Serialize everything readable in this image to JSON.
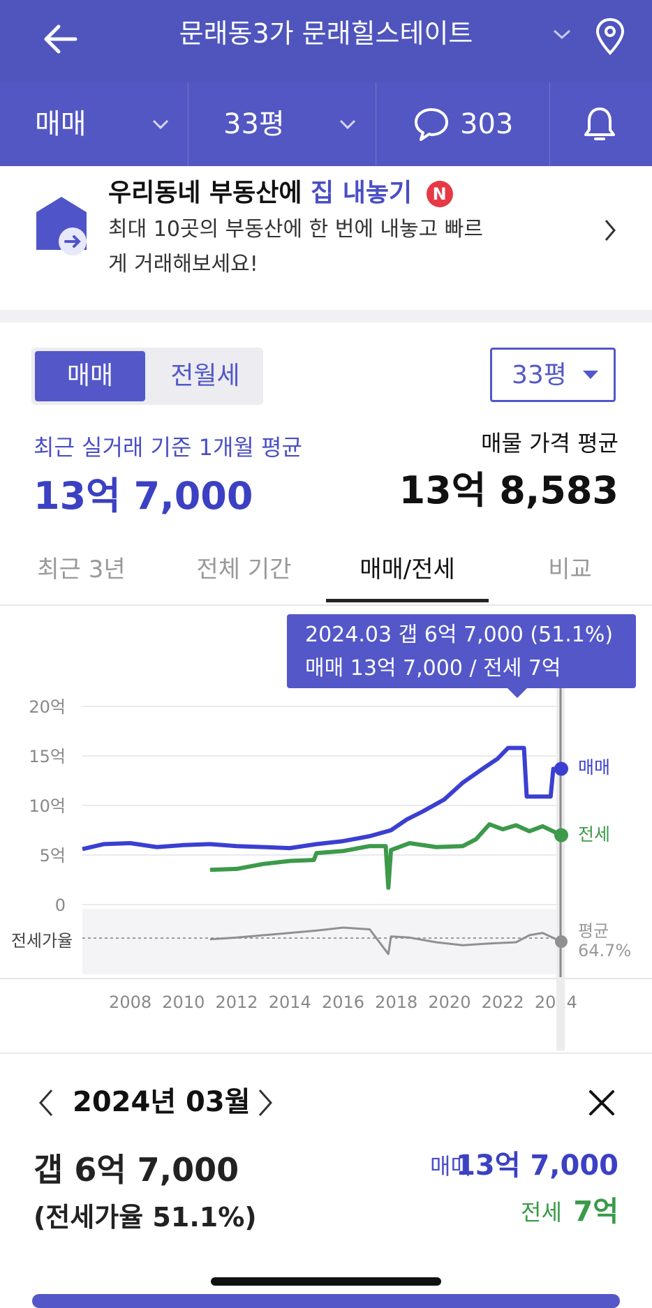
{
  "header": {
    "title": "문래동3가 문래힐스테이트",
    "icons": {
      "back": "back-arrow-icon",
      "dropdown": "chevron-down-icon",
      "location": "map-pin-icon"
    }
  },
  "filters": {
    "trade_type": "매매",
    "size": "33평",
    "comment_count": "303",
    "icons": {
      "comment": "speech-bubble-icon",
      "alert": "bell-icon"
    }
  },
  "banner": {
    "headline_prefix": "우리동네 부동산에",
    "headline_accent": "집 내놓기",
    "badge": "N",
    "description": "최대 10곳의 부동산에 한 번에 내놓고 빠르게 거래해보세요!"
  },
  "segment": {
    "active": "매매",
    "inactive": "전월세"
  },
  "size_select": {
    "value": "33평"
  },
  "summary": {
    "left_label": "최근 실거래 기준 1개월 평균",
    "left_value": "13억 7,000",
    "right_label": "매물 가격 평균",
    "right_value": "13억 8,583"
  },
  "tabs": [
    "최근 3년",
    "전체 기간",
    "매매/전세",
    "비교"
  ],
  "tooltip": {
    "line1": "2024.03  갭 6억 7,000 (51.1%)",
    "line2": "매매 13억 7,000 / 전세 7억"
  },
  "colors": {
    "primary": "#5357c8",
    "sale": "#3b3fd1",
    "jeonse": "#3c9a4a",
    "ratio": "#909090"
  },
  "chart_data": {
    "type": "line",
    "y_unit": "억",
    "ylim": [
      0,
      20
    ],
    "y_ticks": [
      "20억",
      "15억",
      "10억",
      "5억",
      "0"
    ],
    "x_ticks": [
      "2008",
      "2010",
      "2012",
      "2014",
      "2016",
      "2018",
      "2020",
      "2022",
      "2024"
    ],
    "ratio_label": "전세가율",
    "ratio_avg_label": "평균",
    "ratio_avg_value": "64.7%",
    "series": [
      {
        "name": "매매",
        "points": [
          [
            2006.2,
            5.6
          ],
          [
            2007,
            6.1
          ],
          [
            2008,
            6.2
          ],
          [
            2009,
            5.8
          ],
          [
            2010,
            6.0
          ],
          [
            2011,
            6.1
          ],
          [
            2012,
            5.9
          ],
          [
            2013,
            5.8
          ],
          [
            2014,
            5.7
          ],
          [
            2015,
            6.1
          ],
          [
            2016,
            6.4
          ],
          [
            2017,
            6.9
          ],
          [
            2017.8,
            7.5
          ],
          [
            2018.4,
            8.6
          ],
          [
            2019,
            9.4
          ],
          [
            2019.8,
            10.6
          ],
          [
            2020.5,
            12.3
          ],
          [
            2021.3,
            13.8
          ],
          [
            2021.8,
            14.7
          ],
          [
            2022.2,
            15.8
          ],
          [
            2022.8,
            15.8
          ],
          [
            2022.9,
            10.9
          ],
          [
            2023.8,
            10.9
          ],
          [
            2023.9,
            13.7
          ],
          [
            2024.2,
            13.7
          ]
        ]
      },
      {
        "name": "전세",
        "points": [
          [
            2011,
            3.5
          ],
          [
            2012,
            3.6
          ],
          [
            2013,
            4.1
          ],
          [
            2014,
            4.4
          ],
          [
            2014.9,
            4.5
          ],
          [
            2015,
            5.2
          ],
          [
            2016,
            5.4
          ],
          [
            2017,
            5.9
          ],
          [
            2017.6,
            5.9
          ],
          [
            2017.7,
            1.7
          ],
          [
            2017.8,
            5.5
          ],
          [
            2018.5,
            6.2
          ],
          [
            2019.5,
            5.8
          ],
          [
            2020.5,
            5.9
          ],
          [
            2021,
            6.6
          ],
          [
            2021.5,
            8.1
          ],
          [
            2022,
            7.6
          ],
          [
            2022.5,
            8.0
          ],
          [
            2023,
            7.4
          ],
          [
            2023.5,
            7.9
          ],
          [
            2024.2,
            7.0
          ]
        ]
      },
      {
        "name": "전세가율",
        "points": [
          [
            2011,
            55
          ],
          [
            2012,
            58
          ],
          [
            2013,
            62
          ],
          [
            2014,
            66
          ],
          [
            2015,
            70
          ],
          [
            2016,
            75
          ],
          [
            2017,
            72
          ],
          [
            2017.7,
            30
          ],
          [
            2017.8,
            60
          ],
          [
            2018.5,
            58
          ],
          [
            2019.5,
            50
          ],
          [
            2020.5,
            45
          ],
          [
            2021.5,
            48
          ],
          [
            2022.5,
            50
          ],
          [
            2023,
            62
          ],
          [
            2023.5,
            66
          ],
          [
            2024.2,
            51.1
          ]
        ]
      }
    ]
  },
  "detail": {
    "date": "2024년 03월",
    "gap": "갭 6억 7,000",
    "ratio": "(전세가율 51.1%)",
    "sale_label": "매매",
    "sale_value": "13억 7,000",
    "jeonse_label": "전세",
    "jeonse_value": "7억"
  }
}
